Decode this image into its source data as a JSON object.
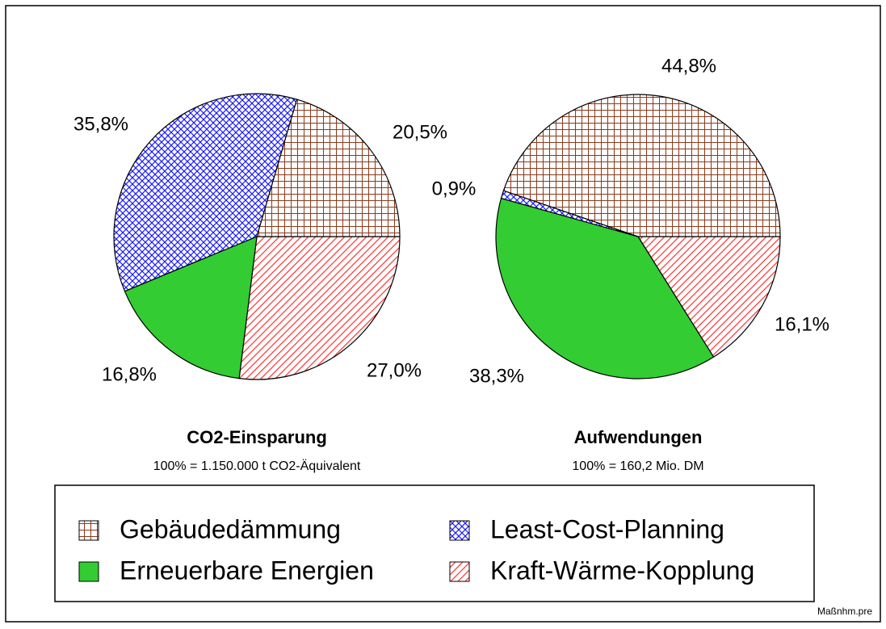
{
  "chart_data": [
    {
      "type": "pie",
      "title": "CO2-Einsparung",
      "subtitle": "100% = 1.150.000 t CO2-Äquivalent",
      "categories": [
        "Gebäudedämmung",
        "Least-Cost-Planning",
        "Erneuerbare Energien",
        "Kraft-Wärme-Kopplung"
      ],
      "values": [
        20.5,
        35.8,
        16.8,
        27.0
      ],
      "value_labels": [
        "20,5%",
        "35,8%",
        "16,8%",
        "27,0%"
      ],
      "colors": [
        "#8b3a1a",
        "#1a1aff",
        "#33cc33",
        "#ff3333"
      ]
    },
    {
      "type": "pie",
      "title": "Aufwendungen",
      "subtitle": "100% = 160,2 Mio. DM",
      "categories": [
        "Gebäudedämmung",
        "Least-Cost-Planning",
        "Erneuerbare Energien",
        "Kraft-Wärme-Kopplung"
      ],
      "values": [
        44.8,
        0.9,
        38.3,
        16.1
      ],
      "value_labels": [
        "44,8%",
        "0,9%",
        "38,3%",
        "16,1%"
      ],
      "colors": [
        "#8b3a1a",
        "#1a1aff",
        "#33cc33",
        "#ff3333"
      ]
    }
  ],
  "footer": "Maßnhm.pre"
}
